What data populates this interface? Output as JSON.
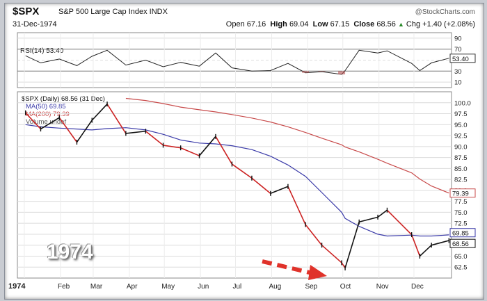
{
  "header": {
    "symbol": "$SPX",
    "name": "S&P 500 Large Cap Index  INDX",
    "date": "31-Dec-1974",
    "brand": "@StockCharts.com",
    "open_label": "Open",
    "open": "67.16",
    "high_label": "High",
    "high": "69.04",
    "low_label": "Low",
    "low": "67.15",
    "close_label": "Close",
    "close": "68.56",
    "change": "Chg +1.40 (+2.08%)",
    "change_arrow": "triangle-up-icon"
  },
  "rsi_panel": {
    "label": "RSI(14) 53.40",
    "ticks": [
      "90",
      "70",
      "50",
      "30",
      "10"
    ],
    "current": "53.40"
  },
  "price_panel": {
    "legend": [
      "$SPX (Daily) 68.56 (31 Dec)",
      "MA(50) 69.85",
      "MA(200) 79.39",
      "Volume undef"
    ],
    "ticks": [
      "100.0",
      "97.5",
      "95.0",
      "92.5",
      "90.0",
      "87.5",
      "85.0",
      "82.5",
      "80.0",
      "77.5",
      "75.0",
      "72.5",
      "70.0",
      "67.5",
      "65.0",
      "62.5"
    ],
    "ma200_tag": "79.39",
    "ma50_tag": "69.85",
    "close_tag": "68.56"
  },
  "x_axis": {
    "labels": [
      "1974",
      "Feb",
      "Mar",
      "Apr",
      "May",
      "Jun",
      "Jul",
      "Aug",
      "Sep",
      "Oct",
      "Nov",
      "Dec"
    ]
  },
  "annotation": {
    "year_text": "1974"
  },
  "colors": {
    "price": "#111111",
    "down": "#cc2222",
    "ma50": "#3a3aa8",
    "ma200": "#c84a4a",
    "rsi": "#222222",
    "arrow": "#e0322a"
  },
  "chart_data": {
    "type": "line",
    "title": "$SPX S&P 500 Large Cap Index INDX",
    "x": [
      "1974-01-02",
      "1974-01-15",
      "1974-01-31",
      "1974-02-15",
      "1974-02-28",
      "1974-03-13",
      "1974-03-29",
      "1974-04-15",
      "1974-04-30",
      "1974-05-15",
      "1974-05-31",
      "1974-06-14",
      "1974-06-28",
      "1974-07-15",
      "1974-07-31",
      "1974-08-15",
      "1974-08-30",
      "1974-09-13",
      "1974-09-30",
      "1974-10-03",
      "1974-10-15",
      "1974-10-31",
      "1974-11-08",
      "1974-11-29",
      "1974-12-06",
      "1974-12-16",
      "1974-12-31"
    ],
    "series": [
      {
        "name": "$SPX (Daily)",
        "values": [
          97.7,
          94.0,
          96.6,
          91.0,
          96.0,
          99.7,
          93.0,
          93.5,
          90.3,
          89.7,
          87.9,
          92.3,
          86.0,
          82.8,
          79.3,
          80.9,
          72.2,
          67.5,
          63.5,
          62.3,
          72.8,
          73.9,
          75.5,
          69.9,
          65.0,
          67.5,
          68.56
        ]
      },
      {
        "name": "MA(50)",
        "values": [
          95.0,
          94.5,
          94.2,
          94.0,
          93.8,
          94.1,
          94.3,
          93.8,
          92.8,
          91.5,
          90.8,
          90.6,
          90.2,
          89.3,
          87.8,
          85.8,
          83.2,
          79.5,
          75.0,
          73.6,
          71.8,
          70.0,
          69.6,
          69.8,
          69.6,
          69.6,
          69.85
        ]
      },
      {
        "name": "MA(200)",
        "values": [
          null,
          null,
          null,
          null,
          null,
          null,
          101.0,
          100.5,
          99.8,
          99.0,
          98.4,
          97.9,
          97.3,
          96.5,
          95.6,
          94.5,
          93.2,
          91.9,
          90.4,
          89.9,
          88.8,
          87.1,
          86.2,
          84.0,
          82.6,
          81.0,
          79.39
        ]
      }
    ],
    "rsi": {
      "name": "RSI(14)",
      "values": [
        58,
        45,
        52,
        40,
        57,
        68,
        41,
        50,
        38,
        46,
        39,
        63,
        36,
        30,
        31,
        44,
        27,
        29,
        24,
        31,
        68,
        63,
        67,
        44,
        31,
        45,
        53.4
      ],
      "ylim": [
        0,
        100
      ]
    },
    "ylim": [
      60,
      102.5
    ],
    "xlabel": "",
    "ylabel": "",
    "grid": true,
    "legend": "top-left"
  }
}
